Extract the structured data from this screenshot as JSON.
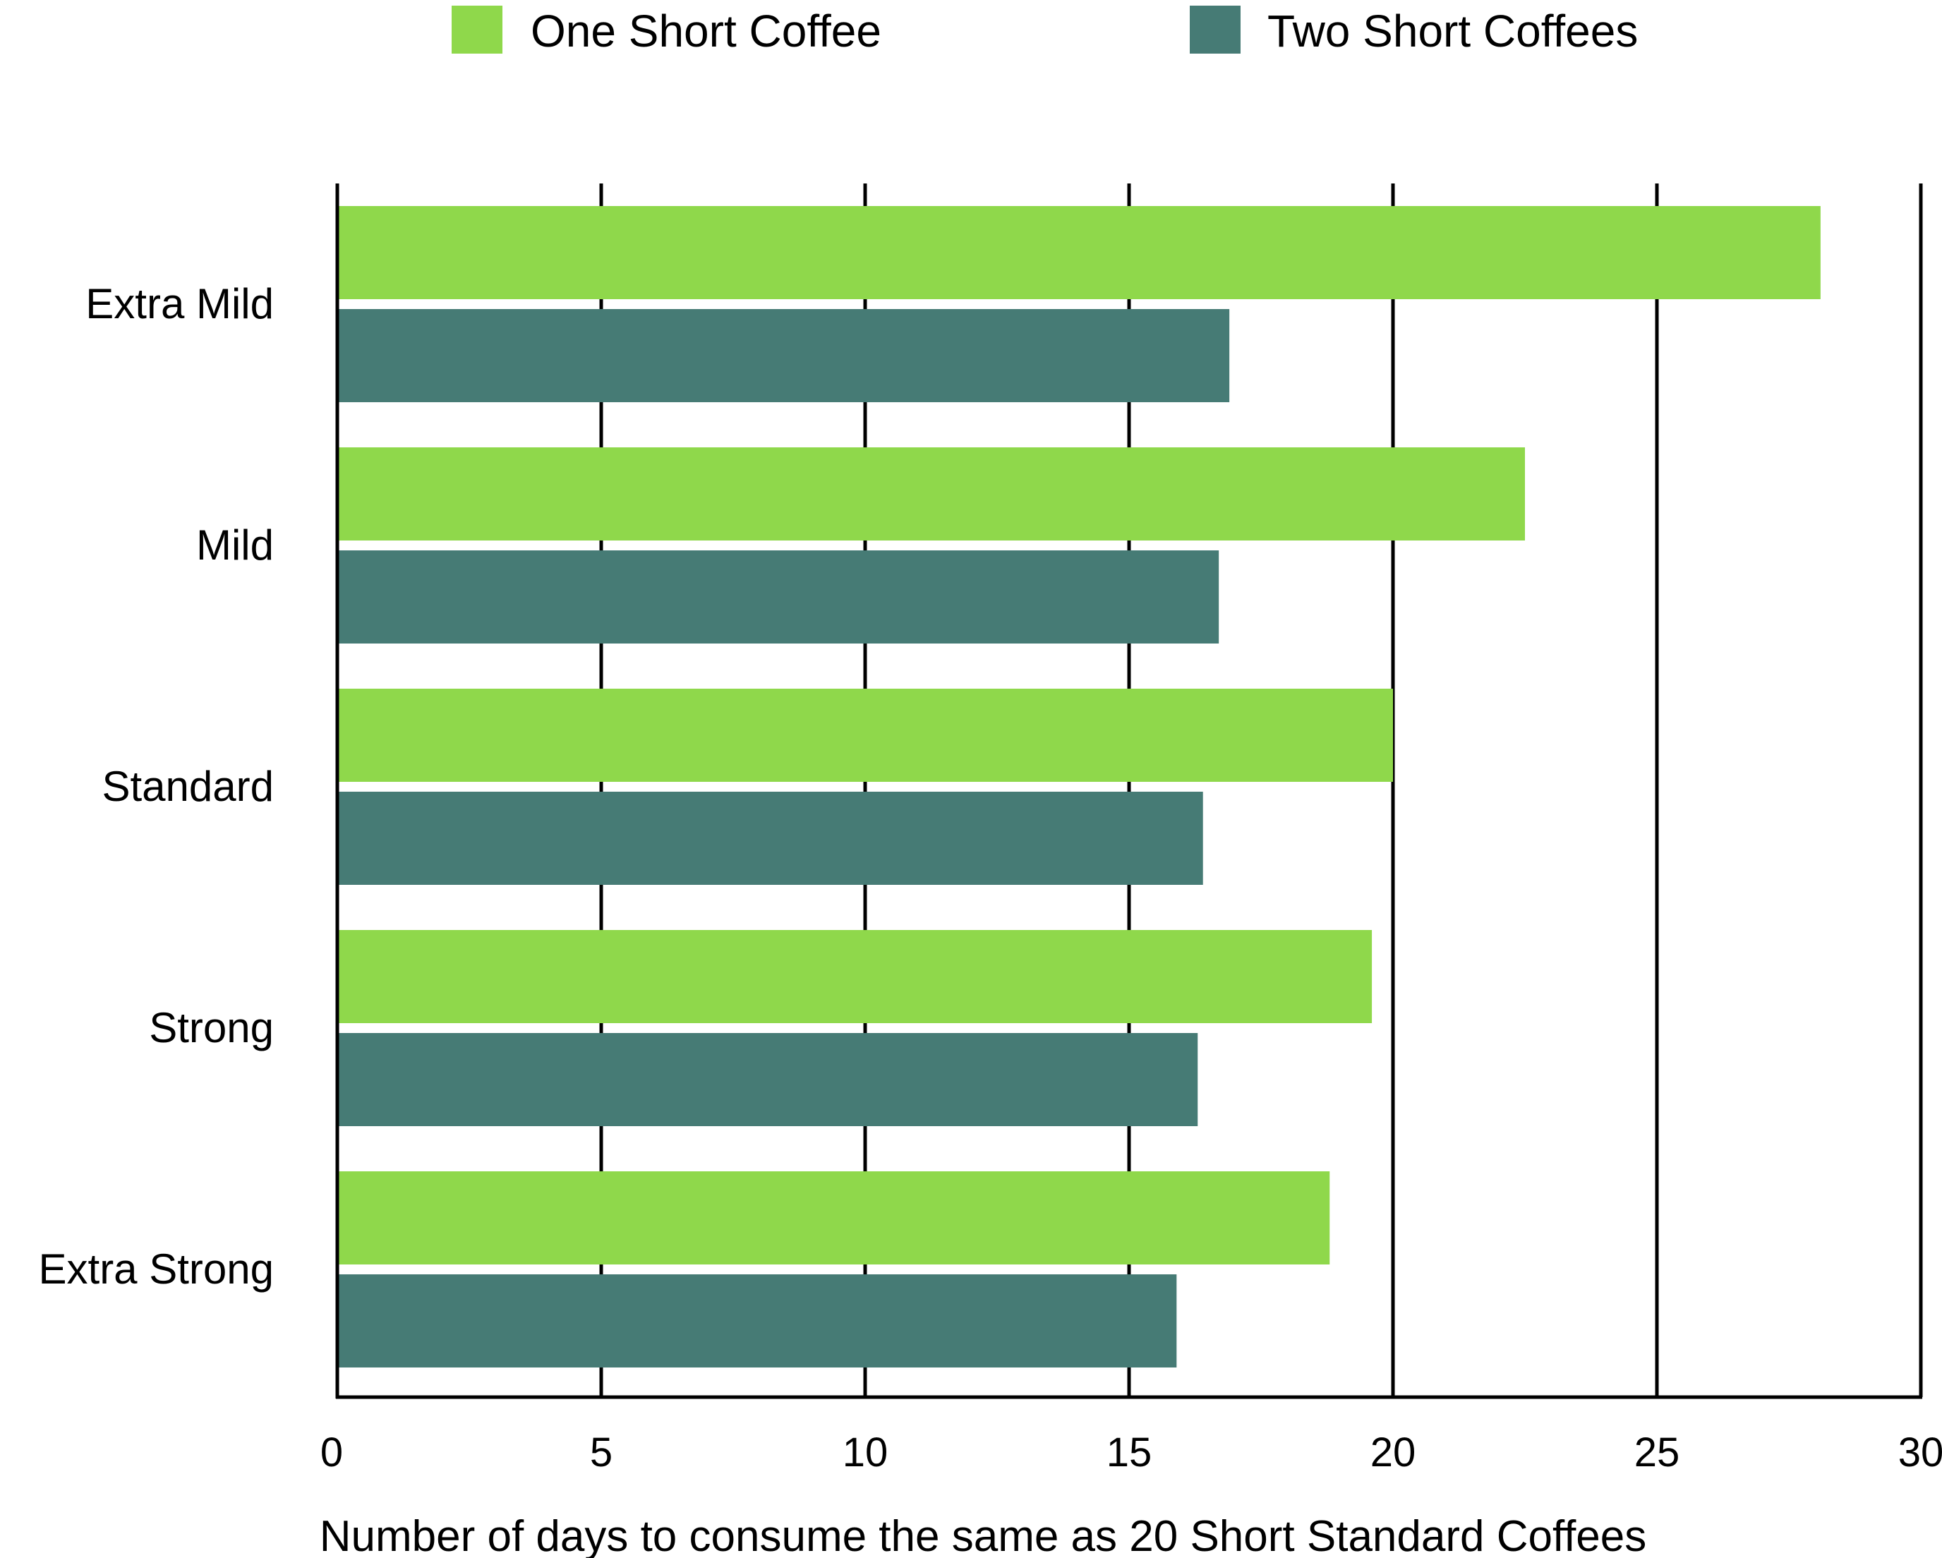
{
  "chart_data": {
    "type": "bar",
    "orientation": "horizontal",
    "title": "",
    "xlabel": "Number of days to consume the same as 20 Short Standard Coffees",
    "ylabel": "",
    "categories": [
      "Extra Mild",
      "Mild",
      "Standard",
      "Strong",
      "Extra Strong"
    ],
    "series": [
      {
        "name": "One Short Coffee",
        "color": "#8fd84b",
        "values": [
          28.1,
          22.5,
          20.0,
          19.6,
          18.8
        ]
      },
      {
        "name": "Two Short Coffees",
        "color": "#467b75",
        "values": [
          16.9,
          16.7,
          16.4,
          16.3,
          15.9
        ]
      }
    ],
    "xlim": [
      0,
      30
    ],
    "xticks": [
      0,
      5,
      10,
      15,
      20,
      25,
      30
    ],
    "grid": "vertical",
    "legend": "top"
  }
}
